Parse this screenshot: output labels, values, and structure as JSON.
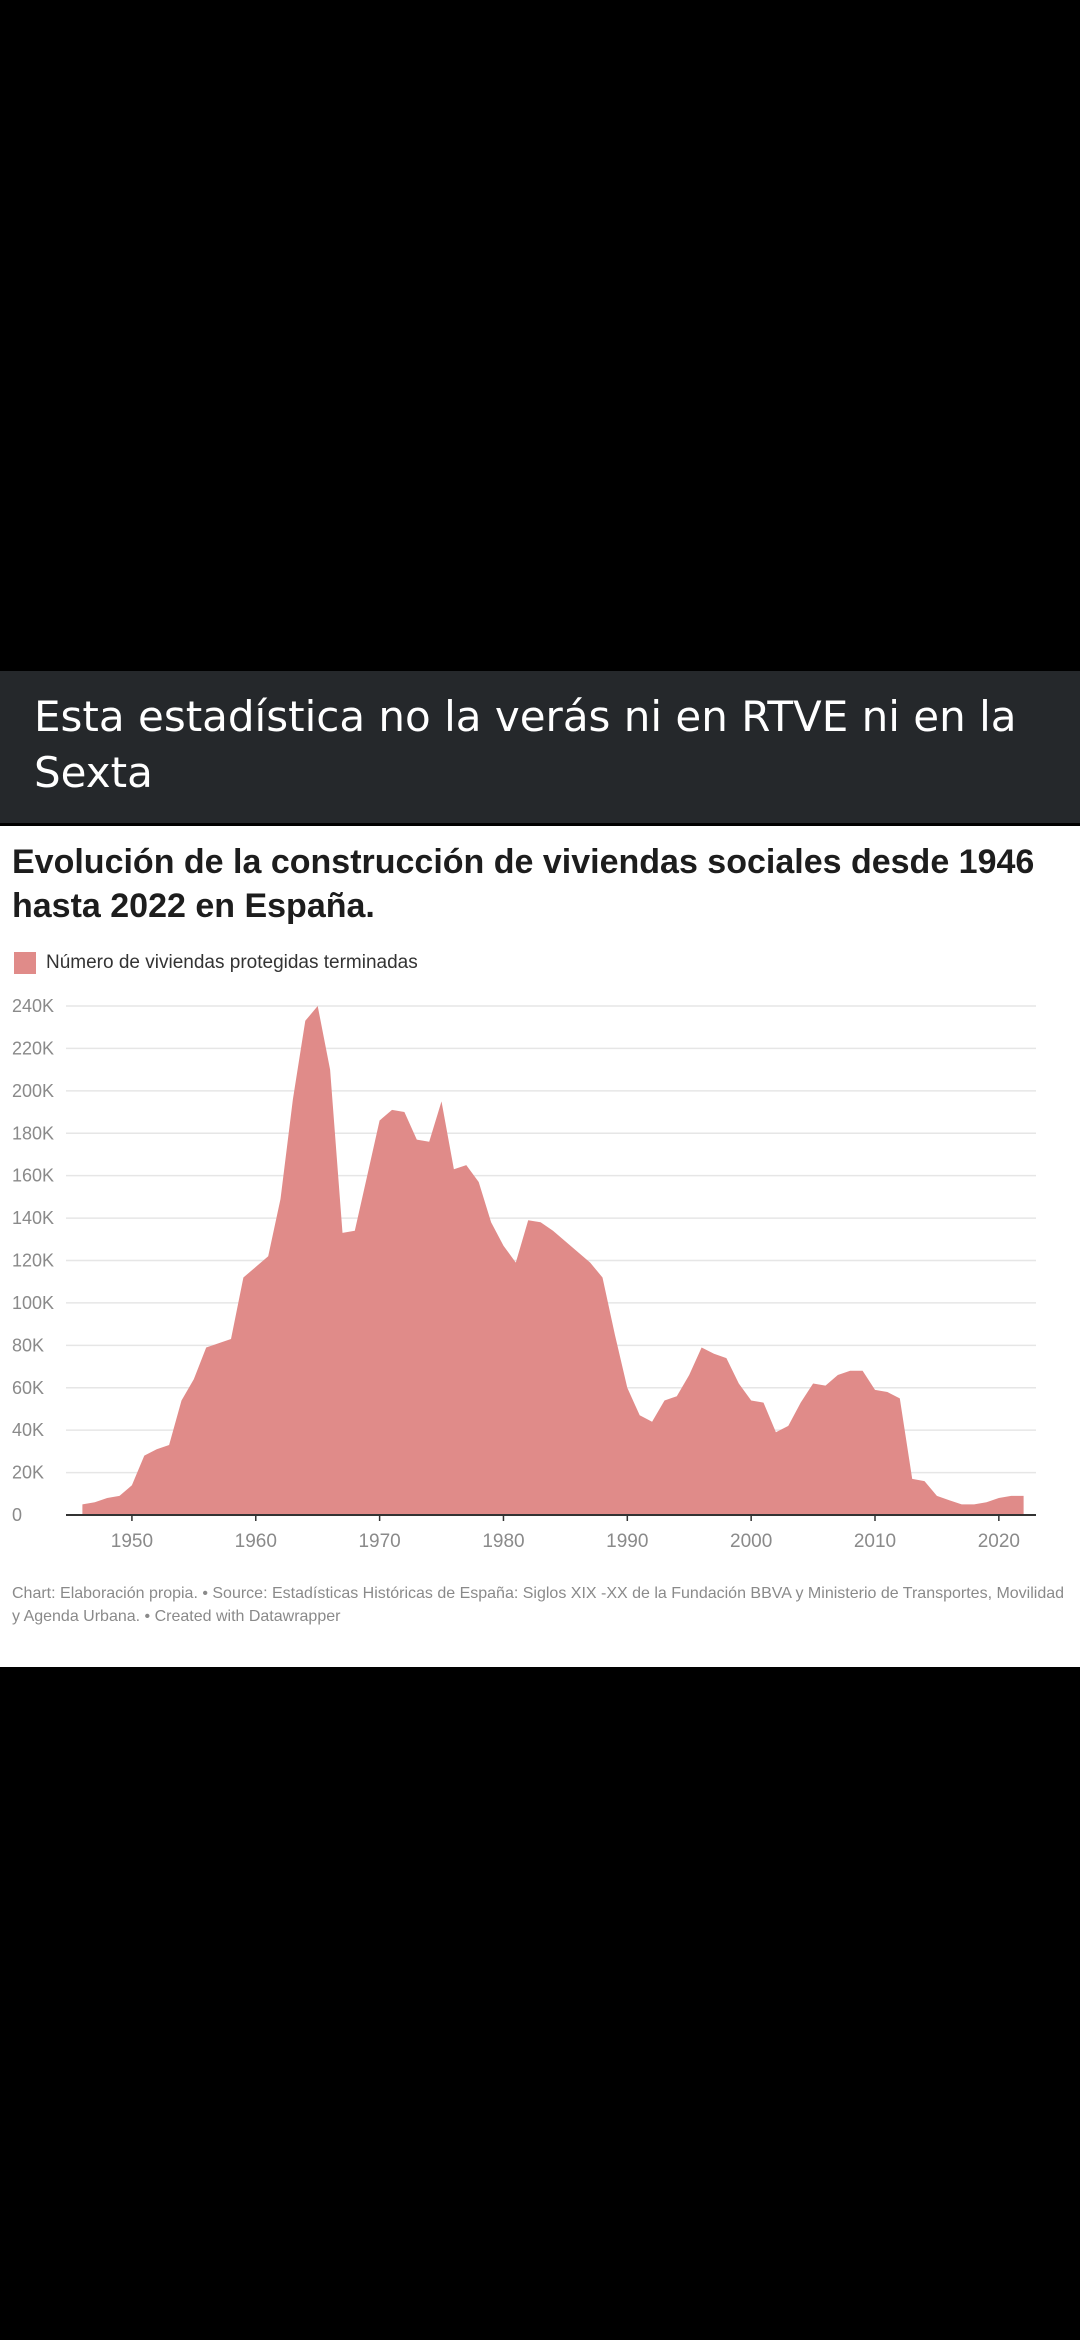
{
  "post": {
    "caption": "Esta estadística no la verás ni en RTVE ni en la Sexta"
  },
  "colors": {
    "background": "#000000",
    "caption_bar": "#25282b",
    "area_fill": "#e08b89",
    "grid": "#e6e6e6",
    "axis": "#333333"
  },
  "chart_data": {
    "type": "area",
    "title": "Evolución de la construcción de viviendas sociales desde 1946 hasta 2022 en España.",
    "legend": "Número de viviendas protegidas terminadas",
    "footer": "Chart: Elaboración propia. • Source: Estadísticas Históricas de España: Siglos XIX -XX de la Fundación BBVA y Ministerio de Transportes, Movilidad y Agenda Urbana. • Created with Datawrapper",
    "xlim": [
      1945,
      2023
    ],
    "ylim": [
      0,
      240000
    ],
    "y_ticks": [
      0,
      20000,
      40000,
      60000,
      80000,
      100000,
      120000,
      140000,
      160000,
      180000,
      200000,
      220000,
      240000
    ],
    "y_tick_labels": [
      "0",
      "20K",
      "40K",
      "60K",
      "80K",
      "100K",
      "120K",
      "140K",
      "160K",
      "180K",
      "200K",
      "220K",
      "240K"
    ],
    "x_ticks": [
      1950,
      1960,
      1970,
      1980,
      1990,
      2000,
      2010,
      2020
    ],
    "x_tick_labels": [
      "1950",
      "1960",
      "1970",
      "1980",
      "1990",
      "2000",
      "2010",
      "2020"
    ],
    "grid": true,
    "legend_position": "top-left",
    "series": [
      {
        "name": "Número de viviendas protegidas terminadas",
        "x": [
          1946,
          1947,
          1948,
          1949,
          1950,
          1951,
          1952,
          1953,
          1954,
          1955,
          1956,
          1957,
          1958,
          1959,
          1960,
          1961,
          1962,
          1963,
          1964,
          1965,
          1966,
          1967,
          1968,
          1969,
          1970,
          1971,
          1972,
          1973,
          1974,
          1975,
          1976,
          1977,
          1978,
          1979,
          1980,
          1981,
          1982,
          1983,
          1984,
          1985,
          1986,
          1987,
          1988,
          1989,
          1990,
          1991,
          1992,
          1993,
          1994,
          1995,
          1996,
          1997,
          1998,
          1999,
          2000,
          2001,
          2002,
          2003,
          2004,
          2005,
          2006,
          2007,
          2008,
          2009,
          2010,
          2011,
          2012,
          2013,
          2014,
          2015,
          2016,
          2017,
          2018,
          2019,
          2020,
          2021,
          2022
        ],
        "values": [
          5000,
          6000,
          8000,
          9000,
          14000,
          28000,
          31000,
          33000,
          54000,
          64000,
          79000,
          81000,
          83000,
          112000,
          117000,
          122000,
          149000,
          196000,
          233000,
          240000,
          210000,
          133000,
          134000,
          160000,
          186000,
          191000,
          190000,
          177000,
          176000,
          195000,
          163000,
          165000,
          157000,
          138000,
          127000,
          119000,
          139000,
          138000,
          134000,
          129000,
          124000,
          119000,
          112000,
          85000,
          60000,
          47000,
          44000,
          54000,
          56000,
          66000,
          79000,
          76000,
          74000,
          62000,
          54000,
          53000,
          39000,
          42000,
          53000,
          62000,
          61000,
          66000,
          68000,
          68000,
          59000,
          58000,
          55000,
          17000,
          16000,
          9000,
          7000,
          5000,
          5000,
          6000,
          8000,
          9000,
          9000
        ]
      }
    ]
  }
}
